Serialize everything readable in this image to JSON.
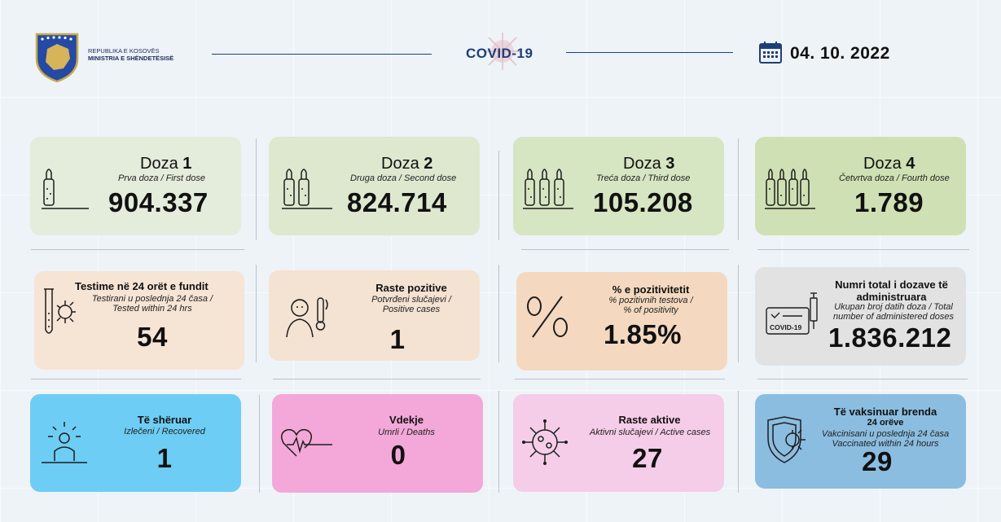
{
  "header": {
    "org_line1": "REPUBLIKA E KOSOVËS",
    "org_line2": "MINISTRIA E SHËNDETËSISË",
    "title": "COVID-19",
    "date": "04. 10. 2022"
  },
  "doses": [
    {
      "word": "Doza",
      "num": "1",
      "sub": "Prva doza / First dose",
      "value": "904.337"
    },
    {
      "word": "Doza",
      "num": "2",
      "sub": "Druga doza / Second dose",
      "value": "824.714"
    },
    {
      "word": "Doza",
      "num": "3",
      "sub": "Treća doza / Third dose",
      "value": "105.208"
    },
    {
      "word": "Doza",
      "num": "4",
      "sub": "Četvrtva doza / Fourth dose",
      "value": "1.789"
    }
  ],
  "tests": {
    "title": "Testime në 24 orët e fundit",
    "sub1": "Testirani u poslednja 24 časa /",
    "sub2": "Tested within 24 hrs",
    "value": "54"
  },
  "positive": {
    "title": "Raste pozitive",
    "sub1": "Potvrđeni slučajevi /",
    "sub2": "Positive cases",
    "value": "1"
  },
  "positivity": {
    "title": "% e pozitivitetit",
    "sub1": "% pozitivnih testova /",
    "sub2": "% of positivity",
    "value": "1.85%"
  },
  "total_doses": {
    "title1": "Numri total i dozave të",
    "title2": "administruara",
    "sub1": "Ukupan broj datih doza / Total",
    "sub2": "number of administered doses",
    "value": "1.836.212",
    "icon_label": "COVID-19"
  },
  "recovered": {
    "title": "Të shëruar",
    "sub1": "Izlečeni / Recovered",
    "value": "1"
  },
  "deaths": {
    "title": "Vdekje",
    "sub1": "Umrli / Deaths",
    "value": "0"
  },
  "active": {
    "title": "Raste aktive",
    "sub1": "Aktivni slučajevi / Active cases",
    "value": "27"
  },
  "vaccinated24": {
    "title1": "Të vaksinuar brenda",
    "title2": "24 orëve",
    "sub1": "Vakcinisani u poslednja 24 časa",
    "sub2": "Vaccinated within 24 hours",
    "value": "29"
  },
  "colors": {
    "dose1": "#e4ecdc",
    "dose2": "#dde8cf",
    "dose3": "#d6e5c2",
    "dose4": "#cfe1b4",
    "tests": "#f6e4d5",
    "positive": "#f4e2d2",
    "positivity": "#f4d9c0",
    "total": "#e2e2e2",
    "recovered": "#6dcdf4",
    "deaths": "#f3a8d9",
    "active": "#f5cde8",
    "vaccinated": "#8bbde0",
    "navy": "#1d3f77"
  }
}
